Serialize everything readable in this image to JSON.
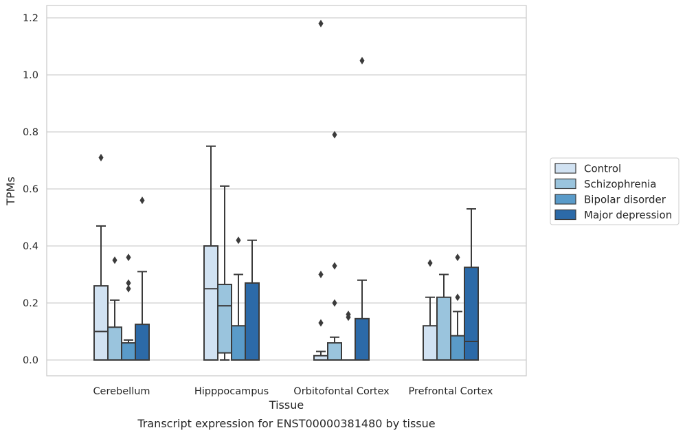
{
  "chart_data": {
    "type": "boxplot",
    "xlabel": "Tissue",
    "ylabel": "TPMs",
    "caption": "Transcript expression for ENST00000381480 by tissue",
    "ylim": [
      -0.058,
      1.245
    ],
    "yticks": [
      0.0,
      0.2,
      0.4,
      0.6,
      0.8,
      1.0,
      1.2
    ],
    "ytick_labels": [
      "0.0",
      "0.2",
      "0.4",
      "0.6",
      "0.8",
      "1.0",
      "1.2"
    ],
    "grid": "horizontal",
    "legend_position": "right",
    "categories": [
      "Cerebellum",
      "Hipppocampus",
      "Orbitofontal Cortex",
      "Prefrontal Cortex"
    ],
    "series": [
      {
        "name": "Control",
        "color": "#d1e2f2",
        "boxes": [
          {
            "q1": 0.0,
            "median": 0.1,
            "q3": 0.26,
            "whisker_low": 0.0,
            "whisker_high": 0.47,
            "outliers": [
              0.71
            ]
          },
          {
            "q1": 0.0,
            "median": 0.25,
            "q3": 0.4,
            "whisker_low": 0.0,
            "whisker_high": 0.75,
            "outliers": []
          },
          {
            "q1": 0.0,
            "median": 0.0,
            "q3": 0.015,
            "whisker_low": 0.0,
            "whisker_high": 0.03,
            "outliers": [
              0.13,
              0.3,
              1.18
            ]
          },
          {
            "q1": 0.0,
            "median": 0.0,
            "q3": 0.12,
            "whisker_low": 0.0,
            "whisker_high": 0.22,
            "outliers": [
              0.34
            ]
          }
        ]
      },
      {
        "name": "Schizophrenia",
        "color": "#9ac4dd",
        "boxes": [
          {
            "q1": 0.0,
            "median": 0.0,
            "q3": 0.115,
            "whisker_low": 0.0,
            "whisker_high": 0.21,
            "outliers": [
              0.35
            ]
          },
          {
            "q1": 0.025,
            "median": 0.19,
            "q3": 0.265,
            "whisker_low": 0.0,
            "whisker_high": 0.61,
            "outliers": []
          },
          {
            "q1": 0.0,
            "median": 0.0,
            "q3": 0.06,
            "whisker_low": 0.0,
            "whisker_high": 0.08,
            "outliers": [
              0.2,
              0.33,
              0.79
            ]
          },
          {
            "q1": 0.0,
            "median": 0.0,
            "q3": 0.22,
            "whisker_low": 0.0,
            "whisker_high": 0.3,
            "outliers": []
          }
        ]
      },
      {
        "name": "Bipolar disorder",
        "color": "#5a9bc9",
        "boxes": [
          {
            "q1": 0.0,
            "median": 0.0,
            "q3": 0.06,
            "whisker_low": 0.0,
            "whisker_high": 0.07,
            "outliers": [
              0.25,
              0.27,
              0.36
            ]
          },
          {
            "q1": 0.0,
            "median": 0.0,
            "q3": 0.12,
            "whisker_low": 0.0,
            "whisker_high": 0.3,
            "outliers": [
              0.42
            ]
          },
          {
            "q1": 0.0,
            "median": 0.0,
            "q3": 0.0,
            "whisker_low": 0.0,
            "whisker_high": 0.0,
            "outliers": [
              0.15,
              0.16
            ]
          },
          {
            "q1": 0.0,
            "median": 0.0,
            "q3": 0.085,
            "whisker_low": 0.0,
            "whisker_high": 0.17,
            "outliers": [
              0.22,
              0.36
            ]
          }
        ]
      },
      {
        "name": "Major depression",
        "color": "#2c6aa8",
        "boxes": [
          {
            "q1": 0.0,
            "median": 0.0,
            "q3": 0.125,
            "whisker_low": 0.0,
            "whisker_high": 0.31,
            "outliers": [
              0.56
            ]
          },
          {
            "q1": 0.0,
            "median": 0.0,
            "q3": 0.27,
            "whisker_low": 0.0,
            "whisker_high": 0.42,
            "outliers": []
          },
          {
            "q1": 0.0,
            "median": 0.0,
            "q3": 0.145,
            "whisker_low": 0.0,
            "whisker_high": 0.28,
            "outliers": [
              1.05
            ]
          },
          {
            "q1": 0.0,
            "median": 0.065,
            "q3": 0.325,
            "whisker_low": 0.0,
            "whisker_high": 0.53,
            "outliers": []
          }
        ]
      }
    ]
  }
}
